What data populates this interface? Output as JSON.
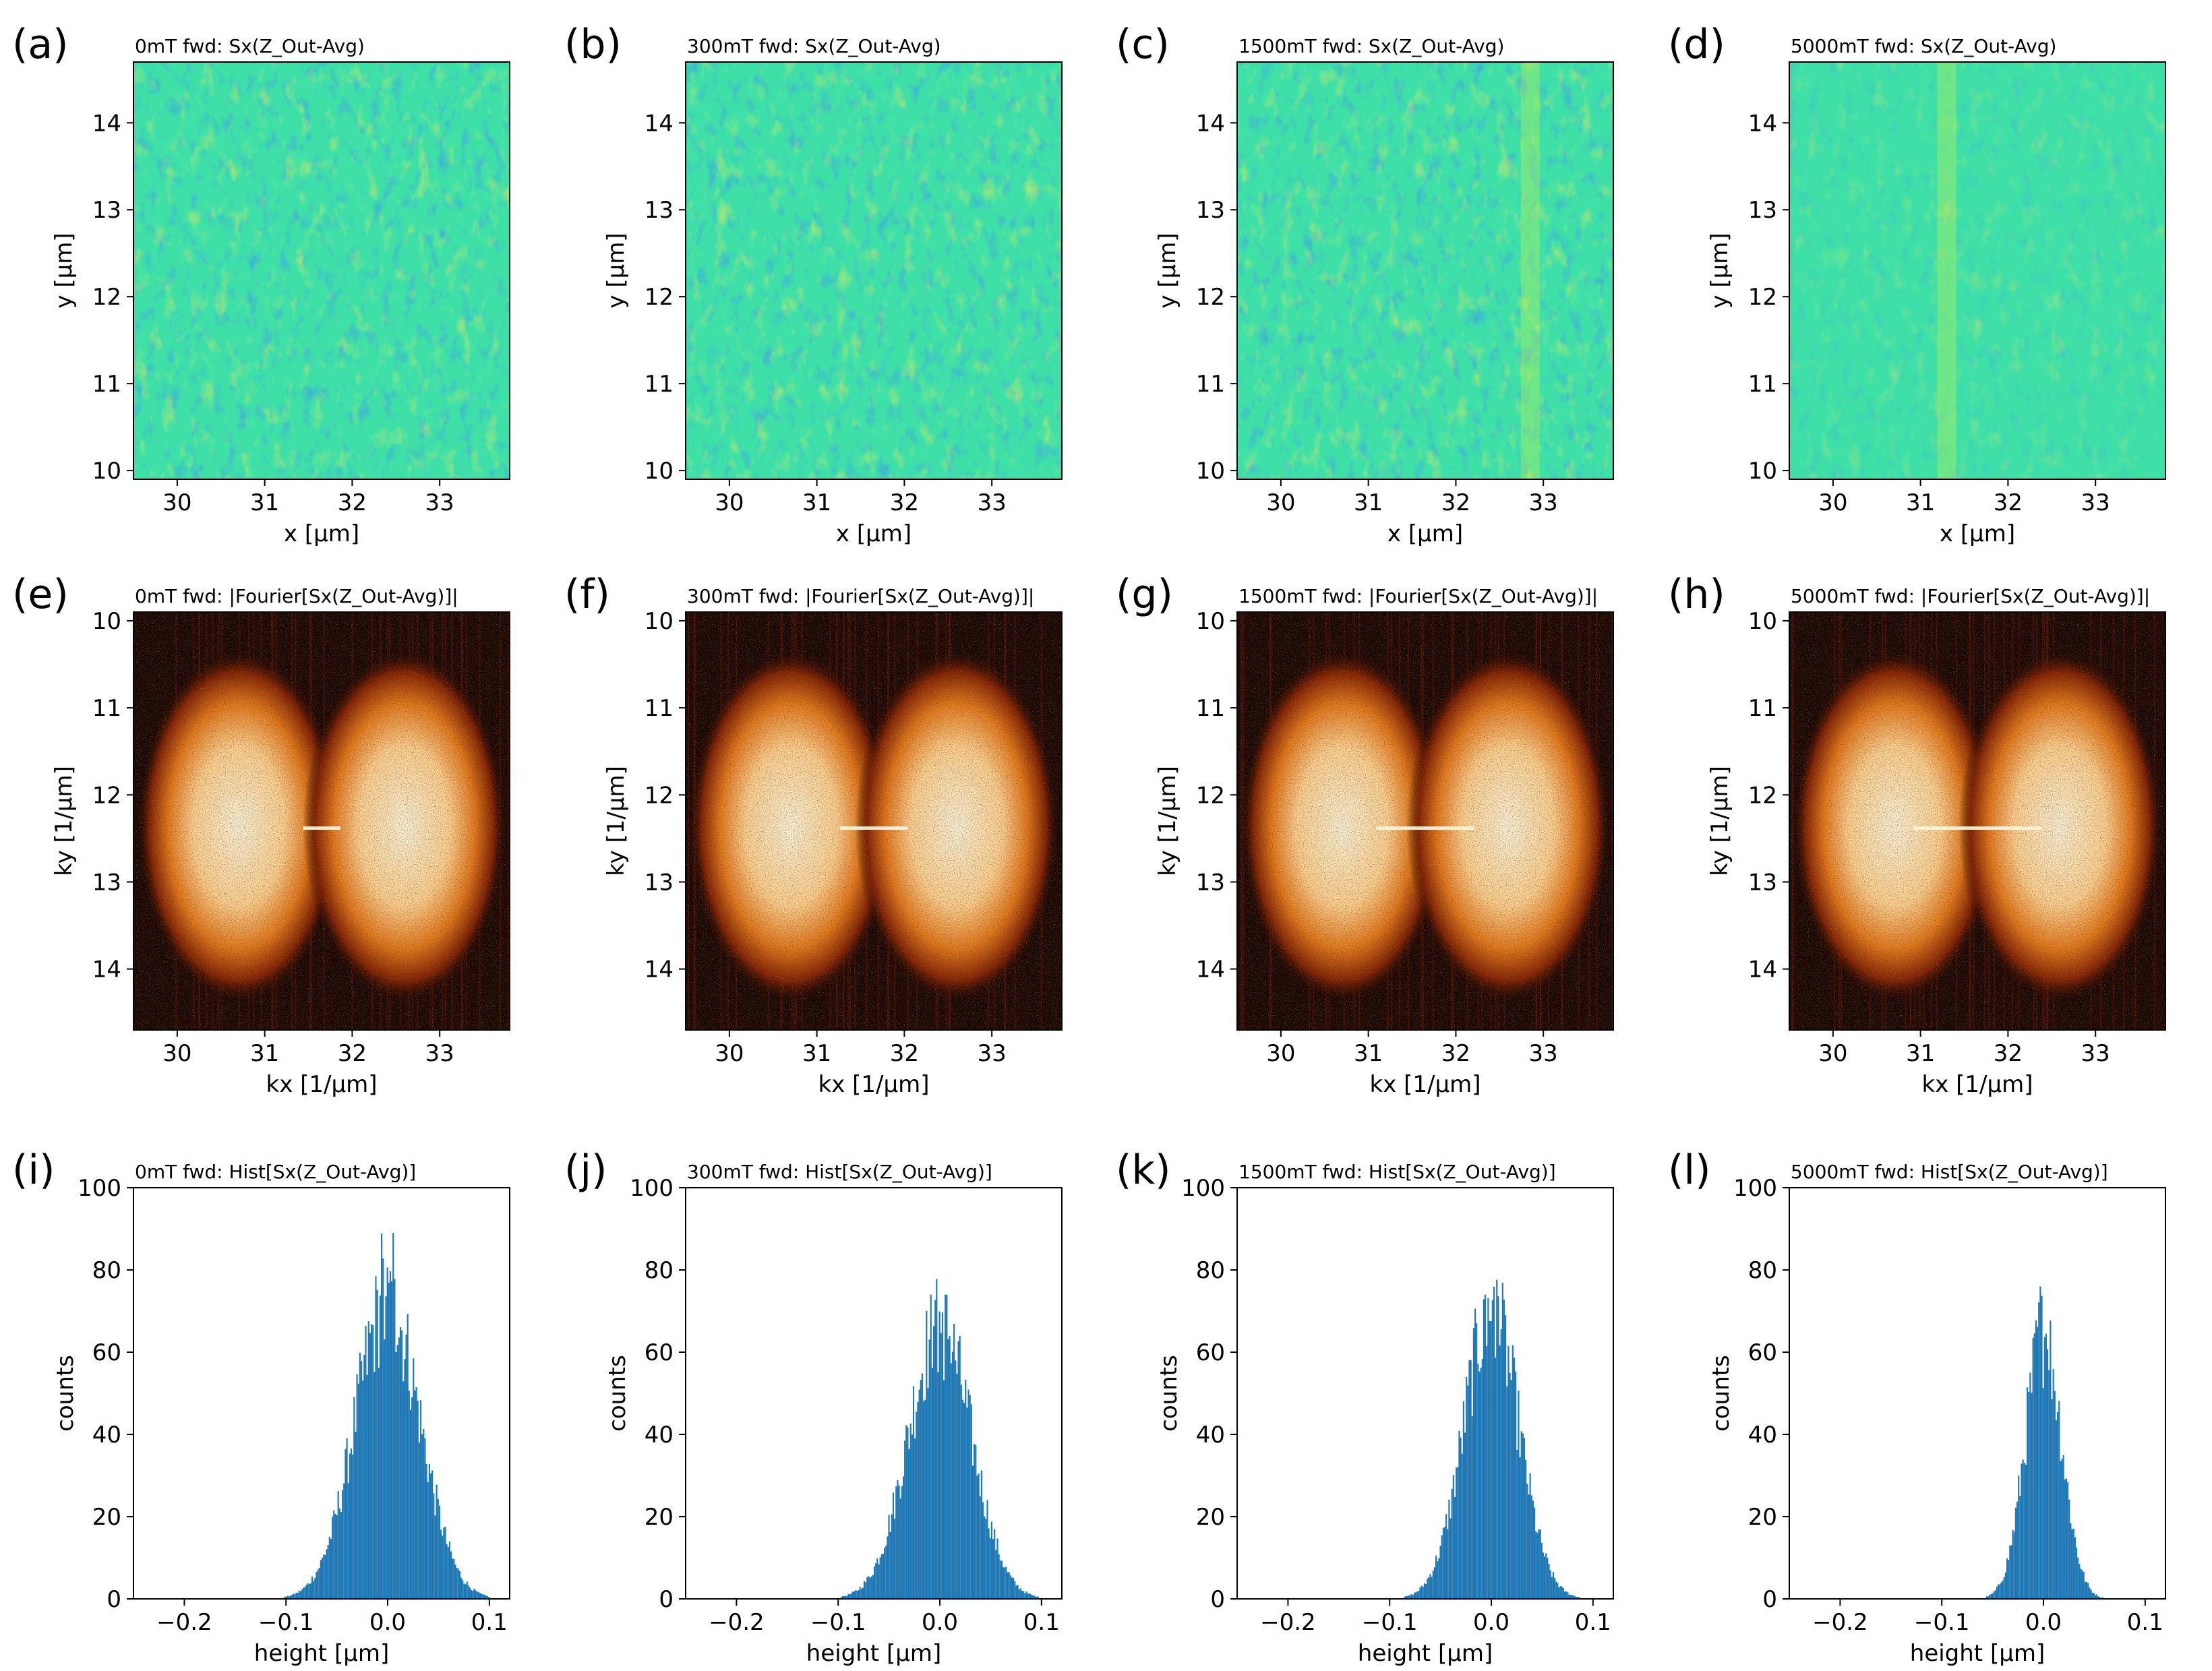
{
  "figure": {
    "rows": [
      {
        "kind": "heatmap",
        "colormap": "jet",
        "xlabel": "x [µm]",
        "ylabel": "y [µm]",
        "xticks": [
          "30",
          "31",
          "32",
          "33"
        ],
        "yticks": [
          "10",
          "11",
          "12",
          "13",
          "14"
        ],
        "panels": [
          {
            "letter": "(a)",
            "title": "0mT fwd:  Sx(Z_Out-Avg)"
          },
          {
            "letter": "(b)",
            "title": "300mT fwd:  Sx(Z_Out-Avg)"
          },
          {
            "letter": "(c)",
            "title": "1500mT fwd:  Sx(Z_Out-Avg)"
          },
          {
            "letter": "(d)",
            "title": "5000mT fwd:  Sx(Z_Out-Avg)"
          }
        ]
      },
      {
        "kind": "fourier",
        "colormap": "afmhot",
        "xlabel": "kx [1/µm]",
        "ylabel": "ky [1/µm]",
        "xticks": [
          "30",
          "31",
          "32",
          "33"
        ],
        "yticks": [
          "10",
          "11",
          "12",
          "13",
          "14"
        ],
        "panels": [
          {
            "letter": "(e)",
            "title": "0mT fwd:  |Fourier[Sx(Z_Out-Avg)]|"
          },
          {
            "letter": "(f)",
            "title": "300mT fwd:  |Fourier[Sx(Z_Out-Avg)]|"
          },
          {
            "letter": "(g)",
            "title": "1500mT fwd:  |Fourier[Sx(Z_Out-Avg)]|"
          },
          {
            "letter": "(h)",
            "title": "5000mT fwd:  |Fourier[Sx(Z_Out-Avg)]|"
          }
        ]
      },
      {
        "kind": "histogram",
        "xlabel": "height [µm]",
        "ylabel": "counts",
        "xticks": [
          "−0.2",
          "−0.1",
          "0.0",
          "0.1"
        ],
        "yticks": [
          "0",
          "20",
          "40",
          "60",
          "80",
          "100"
        ],
        "panels": [
          {
            "letter": "(i)",
            "title": "0mT fwd:  Hist[Sx(Z_Out-Avg)]"
          },
          {
            "letter": "(j)",
            "title": "300mT fwd:  Hist[Sx(Z_Out-Avg)]"
          },
          {
            "letter": "(k)",
            "title": "1500mT fwd:  Hist[Sx(Z_Out-Avg)]"
          },
          {
            "letter": "(l)",
            "title": "5000mT fwd:  Hist[Sx(Z_Out-Avg)]"
          }
        ]
      }
    ]
  },
  "chart_data": [
    {
      "type": "heatmap",
      "panel": "(a)",
      "title": "0mT fwd:  Sx(Z_Out-Avg)",
      "xlabel": "x [µm]",
      "ylabel": "y [µm]",
      "xlim": [
        29.5,
        33.8
      ],
      "ylim": [
        14.7,
        9.9
      ],
      "xticks": [
        30,
        31,
        32,
        33
      ],
      "yticks": [
        10,
        11,
        12,
        13,
        14
      ],
      "colormap": "jet",
      "field": "0mT"
    },
    {
      "type": "heatmap",
      "panel": "(b)",
      "title": "300mT fwd:  Sx(Z_Out-Avg)",
      "xlabel": "x [µm]",
      "ylabel": "y [µm]",
      "xlim": [
        29.5,
        33.8
      ],
      "ylim": [
        14.7,
        9.9
      ],
      "xticks": [
        30,
        31,
        32,
        33
      ],
      "yticks": [
        10,
        11,
        12,
        13,
        14
      ],
      "colormap": "jet",
      "field": "300mT"
    },
    {
      "type": "heatmap",
      "panel": "(c)",
      "title": "1500mT fwd:  Sx(Z_Out-Avg)",
      "xlabel": "x [µm]",
      "ylabel": "y [µm]",
      "xlim": [
        29.5,
        33.8
      ],
      "ylim": [
        14.7,
        9.9
      ],
      "xticks": [
        30,
        31,
        32,
        33
      ],
      "yticks": [
        10,
        11,
        12,
        13,
        14
      ],
      "colormap": "jet",
      "field": "1500mT"
    },
    {
      "type": "heatmap",
      "panel": "(d)",
      "title": "5000mT fwd:  Sx(Z_Out-Avg)",
      "xlabel": "x [µm]",
      "ylabel": "y [µm]",
      "xlim": [
        29.5,
        33.8
      ],
      "ylim": [
        14.7,
        9.9
      ],
      "xticks": [
        30,
        31,
        32,
        33
      ],
      "yticks": [
        10,
        11,
        12,
        13,
        14
      ],
      "colormap": "jet",
      "field": "5000mT"
    },
    {
      "type": "heatmap",
      "panel": "(e)",
      "title": "0mT fwd:  |Fourier[Sx(Z_Out-Avg)]|",
      "xlabel": "kx [1/µm]",
      "ylabel": "ky [1/µm]",
      "xlim": [
        29.5,
        33.8
      ],
      "ylim": [
        9.9,
        14.7
      ],
      "xticks": [
        30,
        31,
        32,
        33
      ],
      "yticks": [
        10,
        11,
        12,
        13,
        14
      ],
      "colormap": "afmhot",
      "field": "0mT"
    },
    {
      "type": "heatmap",
      "panel": "(f)",
      "title": "300mT fwd:  |Fourier[Sx(Z_Out-Avg)]|",
      "xlabel": "kx [1/µm]",
      "ylabel": "ky [1/µm]",
      "xlim": [
        29.5,
        33.8
      ],
      "ylim": [
        9.9,
        14.7
      ],
      "xticks": [
        30,
        31,
        32,
        33
      ],
      "yticks": [
        10,
        11,
        12,
        13,
        14
      ],
      "colormap": "afmhot",
      "field": "300mT"
    },
    {
      "type": "heatmap",
      "panel": "(g)",
      "title": "1500mT fwd:  |Fourier[Sx(Z_Out-Avg)]|",
      "xlabel": "kx [1/µm]",
      "ylabel": "ky [1/µm]",
      "xlim": [
        29.5,
        33.8
      ],
      "ylim": [
        9.9,
        14.7
      ],
      "xticks": [
        30,
        31,
        32,
        33
      ],
      "yticks": [
        10,
        11,
        12,
        13,
        14
      ],
      "colormap": "afmhot",
      "field": "1500mT"
    },
    {
      "type": "heatmap",
      "panel": "(h)",
      "title": "5000mT fwd:  |Fourier[Sx(Z_Out-Avg)]|",
      "xlabel": "kx [1/µm]",
      "ylabel": "ky [1/µm]",
      "xlim": [
        29.5,
        33.8
      ],
      "ylim": [
        9.9,
        14.7
      ],
      "xticks": [
        30,
        31,
        32,
        33
      ],
      "yticks": [
        10,
        11,
        12,
        13,
        14
      ],
      "colormap": "afmhot",
      "field": "5000mT"
    },
    {
      "type": "bar",
      "subtype": "histogram",
      "panel": "(i)",
      "title": "0mT fwd:  Hist[Sx(Z_Out-Avg)]",
      "xlabel": "height [µm]",
      "ylabel": "counts",
      "xlim": [
        -0.25,
        0.12
      ],
      "ylim": [
        0,
        100
      ],
      "center": 0.0,
      "sigma": 0.032,
      "peak": 72,
      "max": 89,
      "support": [
        -0.12,
        0.1
      ],
      "color": "#1f77b4"
    },
    {
      "type": "bar",
      "subtype": "histogram",
      "panel": "(j)",
      "title": "300mT fwd:  Hist[Sx(Z_Out-Avg)]",
      "xlabel": "height [µm]",
      "ylabel": "counts",
      "xlim": [
        -0.25,
        0.12
      ],
      "ylim": [
        0,
        100
      ],
      "center": 0.0,
      "sigma": 0.031,
      "peak": 66,
      "max": 74,
      "support": [
        -0.11,
        0.11
      ],
      "color": "#1f77b4"
    },
    {
      "type": "bar",
      "subtype": "histogram",
      "panel": "(k)",
      "title": "1500mT fwd:  Hist[Sx(Z_Out-Avg)]",
      "xlabel": "height [µm]",
      "ylabel": "counts",
      "xlim": [
        -0.25,
        0.12
      ],
      "ylim": [
        0,
        100
      ],
      "center": 0.0,
      "sigma": 0.027,
      "peak": 70,
      "max": 78,
      "support": [
        -0.1,
        0.1
      ],
      "color": "#1f77b4"
    },
    {
      "type": "bar",
      "subtype": "histogram",
      "panel": "(l)",
      "title": "5000mT fwd:  Hist[Sx(Z_Out-Avg)]",
      "xlabel": "height [µm]",
      "ylabel": "counts",
      "xlim": [
        -0.25,
        0.12
      ],
      "ylim": [
        0,
        100
      ],
      "center": 0.0,
      "sigma": 0.018,
      "peak": 64,
      "max": 76,
      "support": [
        -0.07,
        0.07
      ],
      "color": "#1f77b4"
    }
  ]
}
